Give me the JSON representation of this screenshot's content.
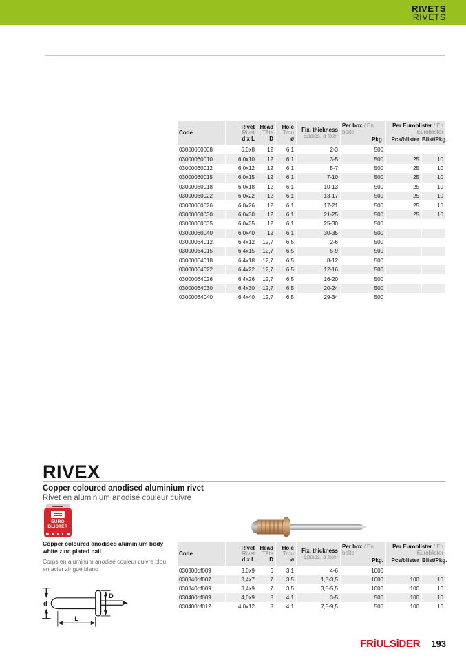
{
  "colors": {
    "banner_green": "#98c11f",
    "brand_red": "#e30613",
    "blister_red": "#d6252b",
    "row_alt": "#ececec",
    "header_gray": "#e4e4e4"
  },
  "banner": {
    "title_line1": "RIVETS",
    "title_line2": "RIVETS"
  },
  "headers": {
    "code": "Code",
    "rivet_en": "Rivet",
    "rivet_fr": "Rivet",
    "rivet_dim": "d x L",
    "head_en": "Head",
    "head_fr": "Tête",
    "head_dim": "D",
    "hole_en": "Hole",
    "hole_fr": "Trou",
    "hole_dim": "ø",
    "fix_en": "Fix. thickness",
    "fix_fr": "Épaiss. à fixer",
    "box_en": "Per box",
    "box_fr": "/ En boîte",
    "box_sub": "Pkg.",
    "euro_en": "Per Euroblister",
    "euro_fr": "/ En Euroblister",
    "euro_sub1": "Pcs/blister",
    "euro_sub2": "Blist/Pkg."
  },
  "table1": {
    "rows": [
      [
        "03000060008",
        "6,0x8",
        "12",
        "6,1",
        "2-3",
        "500",
        "",
        ""
      ],
      [
        "03000060010",
        "6,0x10",
        "12",
        "6,1",
        "3-5",
        "500",
        "25",
        "10"
      ],
      [
        "03000060012",
        "6,0x12",
        "12",
        "6,1",
        "5-7",
        "500",
        "25",
        "10"
      ],
      [
        "03000060015",
        "6,0x15",
        "12",
        "6,1",
        "7-10",
        "500",
        "25",
        "10"
      ],
      [
        "03000060018",
        "6,0x18",
        "12",
        "6,1",
        "10-13",
        "500",
        "25",
        "10"
      ],
      [
        "03000060022",
        "6,0x22",
        "12",
        "6,1",
        "13-17",
        "500",
        "25",
        "10"
      ],
      [
        "03000060026",
        "6,0x26",
        "12",
        "6,1",
        "17-21",
        "500",
        "25",
        "10"
      ],
      [
        "03000060030",
        "6,0x30",
        "12",
        "6,1",
        "21-25",
        "500",
        "25",
        "10"
      ],
      [
        "03000060035",
        "6,0x35",
        "12",
        "6,1",
        "25-30",
        "500",
        "",
        ""
      ],
      [
        "03000060040",
        "6,0x40",
        "12",
        "6,1",
        "30-35",
        "500",
        "",
        ""
      ],
      [
        "03000064012",
        "6,4x12",
        "12,7",
        "6,5",
        "2-6",
        "500",
        "",
        ""
      ],
      [
        "03000064015",
        "6,4x15",
        "12,7",
        "6,5",
        "5-9",
        "500",
        "",
        ""
      ],
      [
        "03000064018",
        "6,4x18",
        "12,7",
        "6,5",
        "8-12",
        "500",
        "",
        ""
      ],
      [
        "03000064022",
        "6,4x22",
        "12,7",
        "6,5",
        "12-16",
        "500",
        "",
        ""
      ],
      [
        "03000064026",
        "6,4x26",
        "12,7",
        "6,5",
        "16-20",
        "500",
        "",
        ""
      ],
      [
        "03000064030",
        "6,4x30",
        "12,7",
        "6,5",
        "20-24",
        "500",
        "",
        ""
      ],
      [
        "03000064040",
        "6,4x40",
        "12,7",
        "6,5",
        "29-34",
        "500",
        "",
        ""
      ]
    ]
  },
  "rivex": {
    "title": "RIVEX",
    "subtitle_en": "Copper coloured anodised aluminium rivet",
    "subtitle_fr": "Rivet en aluminium anodisé couleur cuivre",
    "blister_line1": "EURO",
    "blister_line2": "BLISTER",
    "body_en": "Copper coloured anodised aluminium body white zinc plated nail",
    "body_fr": "Corps en aluminum anodisé couleur cuivre clou en acier zingué blanc",
    "diagram": {
      "label_d": "d",
      "label_D": "D",
      "label_L": "L"
    }
  },
  "table2": {
    "rows": [
      [
        "030300df009",
        "3,0x9",
        "6",
        "3,1",
        "4-6",
        "1000",
        "",
        ""
      ],
      [
        "030340df007",
        "3,4x7",
        "7",
        "3,5",
        "1,5-3,5",
        "1000",
        "100",
        "10"
      ],
      [
        "030340df009",
        "3,4x9",
        "7",
        "3,5",
        "3,5-5,5",
        "1000",
        "100",
        "10"
      ],
      [
        "030400df009",
        "4,0x9",
        "8",
        "4,1",
        "3-5",
        "500",
        "100",
        "10"
      ],
      [
        "030400df012",
        "4,0x12",
        "8",
        "4,1",
        "7,5-9,5",
        "500",
        "100",
        "10"
      ]
    ]
  },
  "footer": {
    "brand": "FRiULSiDER",
    "page": "193"
  }
}
